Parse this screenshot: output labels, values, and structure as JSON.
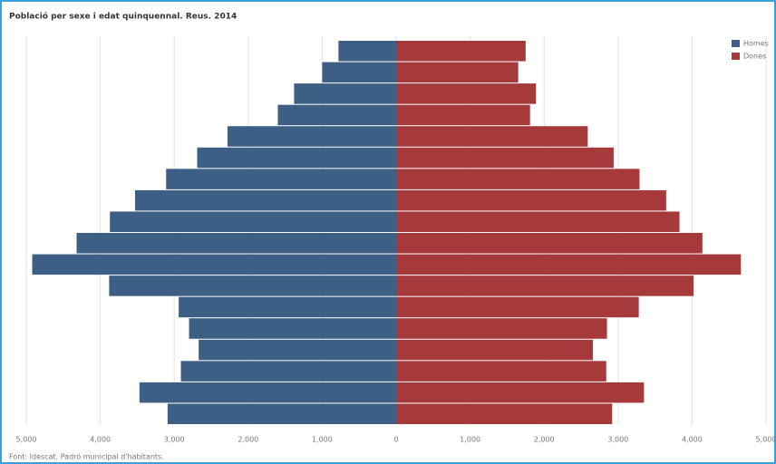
{
  "chart_data": {
    "type": "pyramid",
    "title": "Població per sexe i edat quinquennal. Reus. 2014",
    "source": "Font: Idescat. Padró municipal d'habitants.",
    "series": [
      {
        "name": "Homes",
        "color": "#3d5f85",
        "side": "left",
        "values": [
          780,
          1000,
          1380,
          1600,
          2280,
          2690,
          3110,
          3530,
          3870,
          4320,
          4920,
          3880,
          2940,
          2800,
          2670,
          2910,
          3470,
          3090
        ]
      },
      {
        "name": "Dones",
        "color": "#a63a3a",
        "side": "right",
        "values": [
          1750,
          1650,
          1890,
          1810,
          2590,
          2940,
          3290,
          3650,
          3830,
          4140,
          4660,
          4020,
          3280,
          2850,
          2660,
          2840,
          3350,
          2920
        ]
      }
    ],
    "xlim": [
      -5000,
      5000
    ],
    "xticks": [
      {
        "value": -5000,
        "label": "5,000"
      },
      {
        "value": -4000,
        "label": "4,000"
      },
      {
        "value": -3000,
        "label": "3,000"
      },
      {
        "value": -2000,
        "label": "2,000"
      },
      {
        "value": -1000,
        "label": "1,000"
      },
      0,
      {
        "value": 1000,
        "label": "1,000"
      },
      {
        "value": 2000,
        "label": "2,000"
      },
      {
        "value": 3000,
        "label": "3,000"
      },
      {
        "value": 4000,
        "label": "4,000"
      },
      {
        "value": 5000,
        "label": "5,000"
      }
    ],
    "grid": true,
    "legend": "top-right"
  }
}
